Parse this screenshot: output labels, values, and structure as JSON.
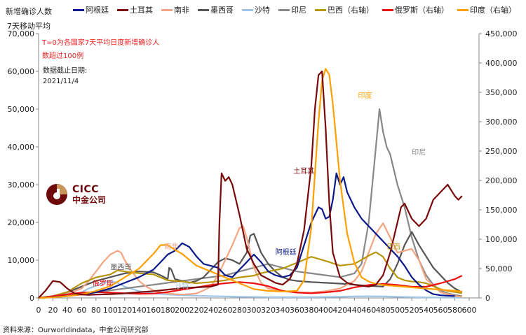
{
  "header": {
    "ylabel_line1": "新增确诊人数",
    "ylabel_line2": "7天移动平均"
  },
  "notes": {
    "t0_line1": "T=0为各国家7天平均日度新增确诊人",
    "t0_line2": "数超过100例",
    "date_label": "数据截止日期:",
    "date_value": "2021/11/4"
  },
  "logo": {
    "en": "CICC",
    "cn": "中金公司"
  },
  "source": "资料来源：Ourworldindata，中金公司研究部",
  "chart_data": {
    "type": "line",
    "title": "",
    "xlabel": "",
    "ylabel": "新增确诊人数 7天移动平均",
    "xlim": [
      0,
      600
    ],
    "ylim_left": [
      0,
      70000
    ],
    "ylim_right": [
      0,
      450000
    ],
    "x_ticks": [
      "0",
      "20",
      "40",
      "60",
      "80",
      "100",
      "120",
      "140",
      "160",
      "180",
      "200",
      "220",
      "240",
      "260",
      "280",
      "300",
      "320",
      "340",
      "360",
      "380",
      "400",
      "420",
      "440",
      "460",
      "480",
      "500",
      "520",
      "540",
      "560",
      "580",
      "600"
    ],
    "y_ticks_left": [
      "0",
      "10,000",
      "20,000",
      "30,000",
      "40,000",
      "50,000",
      "60,000",
      "70,000"
    ],
    "y_ticks_right": [
      "0",
      "50,000",
      "100,000",
      "150,000",
      "200,000",
      "250,000",
      "300,000",
      "350,000",
      "400,000",
      "450,000"
    ],
    "legend_position": "top",
    "series": [
      {
        "name": "阿根廷",
        "axis": "left",
        "color": "#0a1a8a",
        "label": "阿根廷",
        "x": [
          0,
          20,
          40,
          60,
          80,
          100,
          120,
          140,
          160,
          170,
          180,
          190,
          200,
          210,
          220,
          230,
          240,
          250,
          260,
          270,
          280,
          290,
          300,
          310,
          320,
          330,
          340,
          350,
          360,
          370,
          380,
          390,
          395,
          400,
          405,
          410,
          415,
          420,
          425,
          430,
          440,
          450,
          460,
          470,
          480,
          490,
          500,
          510,
          520,
          530,
          540,
          550,
          560,
          570,
          580
        ],
        "y": [
          0,
          200,
          500,
          900,
          1500,
          2500,
          4000,
          5500,
          7500,
          9500,
          11500,
          12500,
          14500,
          13500,
          11000,
          9000,
          8500,
          8000,
          6000,
          5500,
          7500,
          9500,
          11500,
          9500,
          7000,
          6000,
          5500,
          6000,
          8000,
          14000,
          20000,
          24000,
          23500,
          21000,
          21500,
          26000,
          33000,
          30000,
          32000,
          28000,
          24000,
          21000,
          19000,
          17000,
          15000,
          13000,
          11000,
          8500,
          5500,
          3500,
          2000,
          1000,
          700,
          600,
          500
        ]
      },
      {
        "name": "土耳其",
        "axis": "left",
        "color": "#7a0a0a",
        "label": "土耳其",
        "x": [
          0,
          10,
          20,
          30,
          40,
          50,
          60,
          70,
          80,
          100,
          120,
          140,
          160,
          180,
          200,
          220,
          240,
          250,
          252,
          255,
          260,
          265,
          270,
          280,
          290,
          300,
          310,
          320,
          330,
          340,
          350,
          360,
          370,
          380,
          385,
          390,
          395,
          400,
          405,
          410,
          420,
          430,
          440,
          450,
          460,
          470,
          480,
          490,
          500,
          505,
          510,
          520,
          530,
          540,
          550,
          560,
          570,
          580,
          585,
          590
        ],
        "y": [
          0,
          2000,
          4500,
          4200,
          2500,
          1200,
          900,
          800,
          900,
          1000,
          1200,
          1500,
          1800,
          2200,
          2600,
          2800,
          3000,
          3500,
          20000,
          33000,
          31000,
          32000,
          30000,
          22000,
          13000,
          9000,
          6000,
          5000,
          4000,
          3500,
          5000,
          9000,
          18000,
          35000,
          50000,
          59000,
          60000,
          45000,
          25000,
          12000,
          5500,
          4000,
          3500,
          3200,
          3000,
          3500,
          6000,
          12000,
          20000,
          24000,
          25000,
          21000,
          19000,
          21000,
          26000,
          28000,
          30000,
          27000,
          26000,
          27000
        ]
      },
      {
        "name": "南非",
        "axis": "left",
        "color": "#f4a582",
        "label": "南非",
        "x": [
          0,
          20,
          40,
          60,
          70,
          80,
          90,
          100,
          110,
          115,
          120,
          130,
          140,
          150,
          160,
          170,
          180,
          190,
          200,
          210,
          220,
          230,
          240,
          250,
          260,
          270,
          280,
          285,
          290,
          300,
          310,
          320,
          340,
          360,
          380,
          400,
          420,
          440,
          450,
          460,
          470,
          480,
          490,
          500,
          510,
          520,
          530,
          540,
          560,
          580,
          590
        ],
        "y": [
          0,
          300,
          1000,
          2500,
          4500,
          7000,
          9500,
          11500,
          12500,
          12000,
          10000,
          7000,
          4500,
          3000,
          2000,
          1500,
          1200,
          1000,
          900,
          1000,
          1200,
          2000,
          3000,
          6000,
          10000,
          14000,
          18500,
          19000,
          16000,
          8000,
          4000,
          2500,
          1800,
          1500,
          1400,
          1800,
          2500,
          4500,
          7000,
          12000,
          17000,
          19800,
          16000,
          12000,
          12500,
          13000,
          10000,
          5000,
          1500,
          500,
          300
        ]
      },
      {
        "name": "墨西哥",
        "axis": "left",
        "color": "#555555",
        "label": "墨西哥",
        "x": [
          0,
          20,
          40,
          60,
          80,
          100,
          120,
          140,
          160,
          170,
          180,
          182,
          185,
          190,
          200,
          210,
          220,
          230,
          240,
          250,
          260,
          270,
          280,
          290,
          295,
          300,
          310,
          320,
          330,
          340,
          350,
          360,
          380,
          400,
          420,
          440,
          460,
          480,
          490,
          500,
          510,
          520,
          530,
          540,
          550,
          560,
          570,
          580,
          590
        ],
        "y": [
          0,
          500,
          1500,
          3000,
          4500,
          5500,
          6500,
          7000,
          6800,
          6000,
          5000,
          8000,
          7500,
          5000,
          4500,
          4000,
          4500,
          5500,
          7500,
          9500,
          10500,
          10000,
          9000,
          12000,
          16500,
          17000,
          12000,
          9000,
          7000,
          5500,
          4800,
          4500,
          4200,
          4000,
          3800,
          3500,
          3200,
          3000,
          5000,
          9000,
          14000,
          17500,
          14000,
          11000,
          8000,
          6000,
          4000,
          2500,
          1500
        ]
      },
      {
        "name": "沙特",
        "axis": "left",
        "color": "#9ec5e8",
        "label": "沙特",
        "x": [
          0,
          20,
          40,
          60,
          70,
          80,
          90,
          100,
          110,
          120,
          140,
          160,
          180,
          200,
          220,
          240,
          260,
          280,
          300,
          320,
          340,
          360,
          380,
          400,
          420,
          440,
          460,
          480,
          500,
          520,
          540,
          560,
          580,
          590
        ],
        "y": [
          0,
          300,
          800,
          1500,
          2500,
          3200,
          4000,
          4500,
          4000,
          3000,
          1800,
          1200,
          900,
          700,
          600,
          500,
          400,
          300,
          250,
          200,
          200,
          200,
          200,
          250,
          300,
          400,
          450,
          400,
          300,
          200,
          150,
          100,
          80,
          60
        ]
      },
      {
        "name": "印尼",
        "axis": "left",
        "color": "#888888",
        "label": "印尼",
        "x": [
          0,
          20,
          40,
          60,
          80,
          100,
          120,
          140,
          160,
          180,
          200,
          220,
          240,
          260,
          280,
          300,
          320,
          340,
          360,
          380,
          400,
          420,
          440,
          450,
          460,
          470,
          475,
          480,
          485,
          490,
          495,
          500,
          510,
          520,
          530,
          540,
          550,
          560,
          570,
          580,
          590
        ],
        "y": [
          0,
          200,
          500,
          1000,
          1500,
          2000,
          2500,
          3000,
          3500,
          4000,
          4500,
          5000,
          5500,
          6000,
          7000,
          8000,
          9000,
          8000,
          7000,
          6500,
          6000,
          5500,
          6500,
          9000,
          20000,
          40000,
          50000,
          44000,
          40000,
          38000,
          34000,
          30000,
          24000,
          16000,
          10000,
          6000,
          3500,
          2000,
          1200,
          800,
          500
        ]
      },
      {
        "name": "巴西（右轴）",
        "axis": "right",
        "color": "#b8960c",
        "label": "巴西",
        "x": [
          0,
          20,
          40,
          60,
          80,
          100,
          110,
          120,
          140,
          160,
          170,
          180,
          200,
          220,
          240,
          260,
          280,
          300,
          310,
          320,
          340,
          360,
          370,
          380,
          400,
          420,
          440,
          450,
          460,
          470,
          480,
          490,
          500,
          510,
          520,
          530,
          540,
          550,
          560,
          570,
          580,
          590
        ],
        "y": [
          0,
          3000,
          10000,
          25000,
          35000,
          40000,
          47000,
          45000,
          42000,
          40000,
          35000,
          30000,
          28000,
          25000,
          27000,
          30000,
          35000,
          38000,
          42000,
          45000,
          50000,
          60000,
          65000,
          70000,
          63000,
          55000,
          58000,
          65000,
          72000,
          78000,
          70000,
          50000,
          35000,
          30000,
          28000,
          27000,
          25000,
          20000,
          15000,
          12000,
          10000,
          8000
        ]
      },
      {
        "name": "俄罗斯（右轴）",
        "axis": "right",
        "color": "#ee1111",
        "label": "俄罗斯",
        "x": [
          0,
          20,
          40,
          60,
          80,
          100,
          120,
          140,
          160,
          180,
          200,
          220,
          240,
          260,
          280,
          300,
          320,
          340,
          360,
          380,
          400,
          420,
          440,
          460,
          480,
          500,
          520,
          540,
          560,
          580,
          590
        ],
        "y": [
          0,
          3000,
          6000,
          9000,
          10000,
          9000,
          8000,
          7000,
          7500,
          10000,
          14000,
          18000,
          22000,
          25000,
          27000,
          25000,
          20000,
          12000,
          9000,
          8000,
          9500,
          12000,
          18000,
          22000,
          24000,
          22000,
          19000,
          19000,
          25000,
          32000,
          38000
        ]
      },
      {
        "name": "印度（右轴）",
        "axis": "right",
        "color": "#ffa000",
        "label": "印度",
        "x": [
          0,
          20,
          40,
          60,
          80,
          100,
          120,
          140,
          160,
          170,
          180,
          190,
          200,
          210,
          220,
          240,
          260,
          280,
          300,
          320,
          340,
          360,
          370,
          380,
          390,
          395,
          400,
          405,
          410,
          420,
          430,
          440,
          450,
          460,
          470,
          480,
          500,
          520,
          540,
          560,
          580,
          590
        ],
        "y": [
          0,
          1000,
          3000,
          6000,
          12000,
          20000,
          35000,
          50000,
          75000,
          90000,
          90000,
          82000,
          75000,
          65000,
          55000,
          45000,
          35000,
          25000,
          15000,
          12000,
          11000,
          12000,
          30000,
          120000,
          300000,
          370000,
          390000,
          380000,
          330000,
          200000,
          110000,
          60000,
          35000,
          28000,
          24000,
          22000,
          20000,
          18000,
          16000,
          14000,
          12000,
          11000
        ]
      }
    ]
  }
}
